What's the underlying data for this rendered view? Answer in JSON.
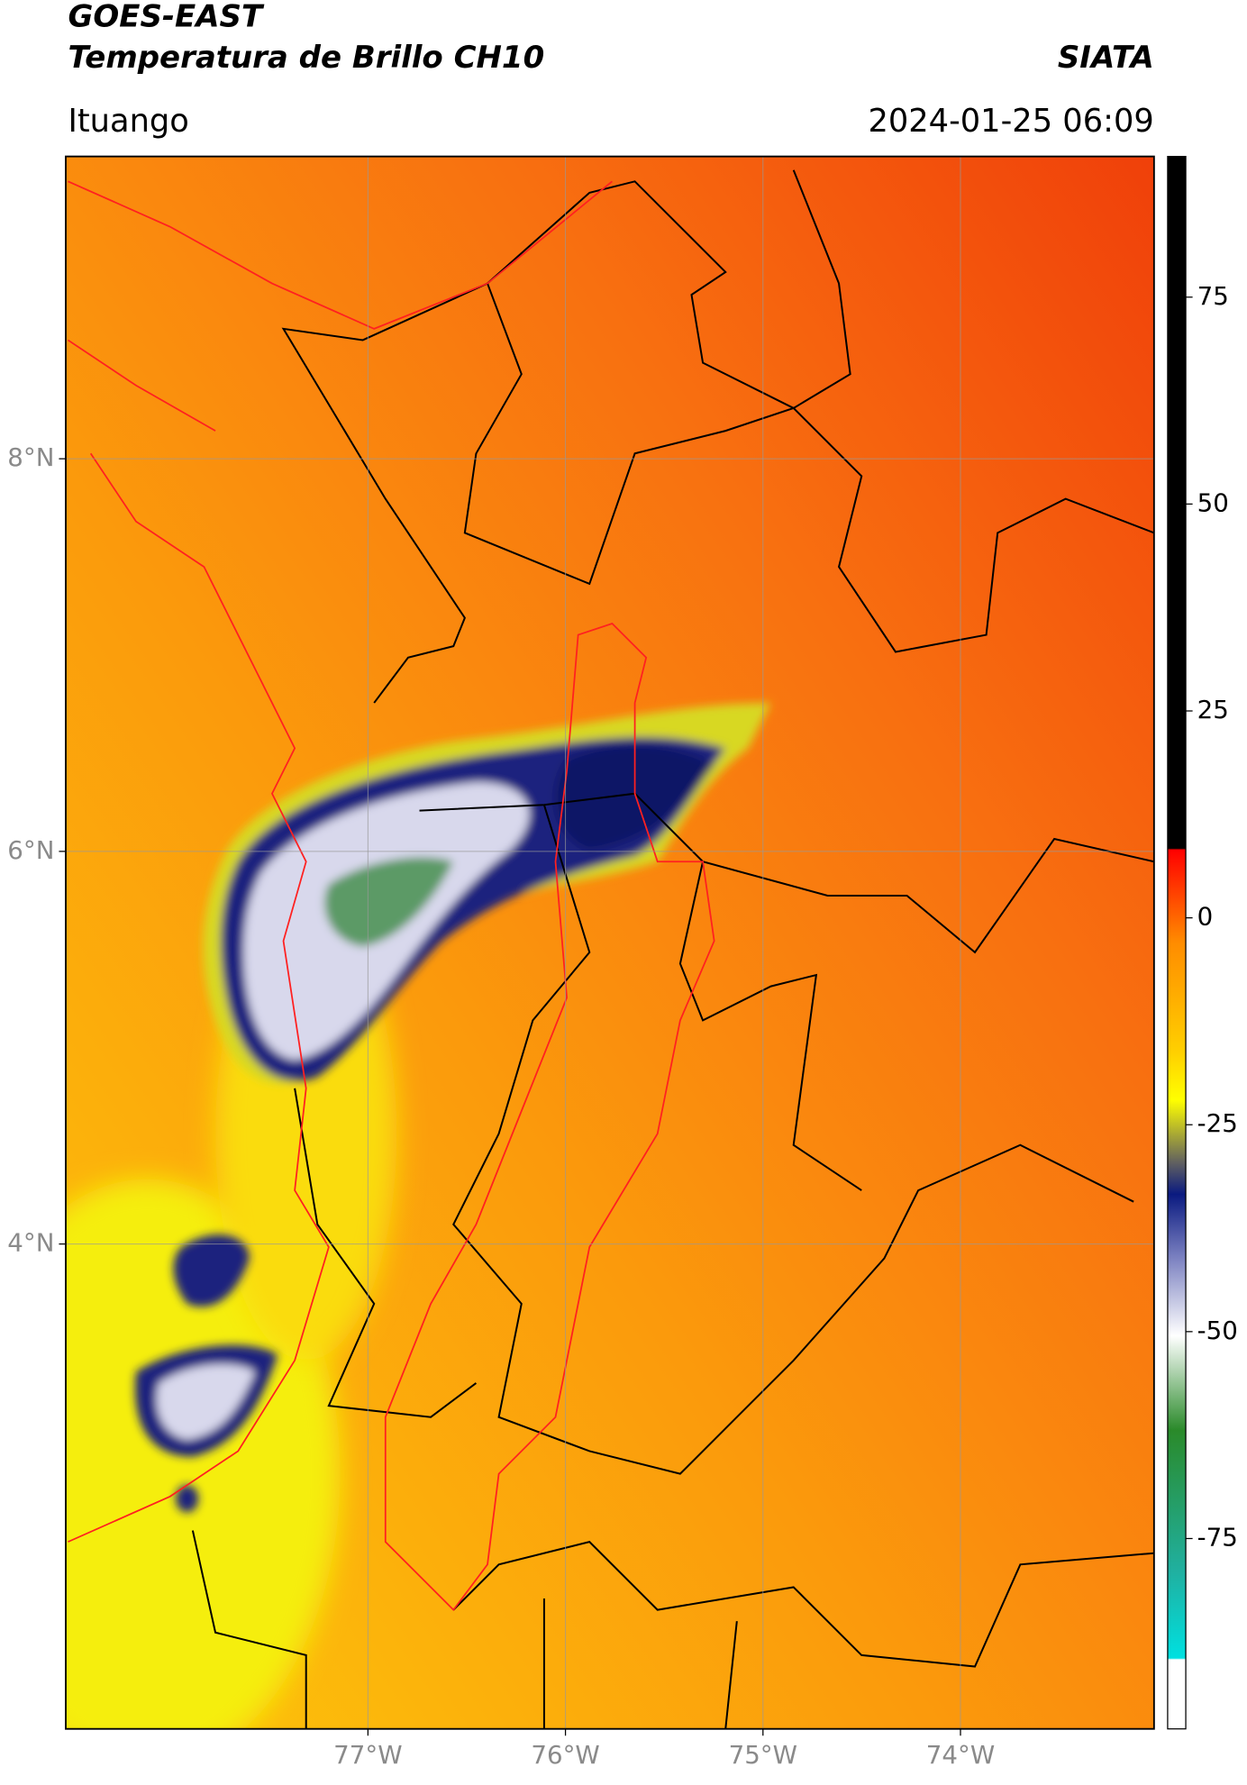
{
  "header": {
    "title": "GOES-EAST",
    "subtitle": "Temperatura de Brillo CH10",
    "agency": "SIATA",
    "location": "Ituango",
    "datetime": "2024-01-25 06:09"
  },
  "map": {
    "xlim": [
      -78.53,
      -73.02
    ],
    "ylim": [
      1.53,
      9.54
    ],
    "lat_ticks": [
      {
        "value": 8,
        "label": "8°N"
      },
      {
        "value": 6,
        "label": "6°N"
      },
      {
        "value": 4,
        "label": "4°N"
      }
    ],
    "lon_ticks": [
      {
        "value": -77,
        "label": "77°W"
      },
      {
        "value": -76,
        "label": "76°W"
      },
      {
        "value": -75,
        "label": "75°W"
      },
      {
        "value": -74,
        "label": "74°W"
      }
    ]
  },
  "colorbar": {
    "lim": [
      -98,
      92
    ],
    "ticks": [
      75,
      50,
      25,
      0,
      -25,
      -50,
      -75
    ]
  }
}
